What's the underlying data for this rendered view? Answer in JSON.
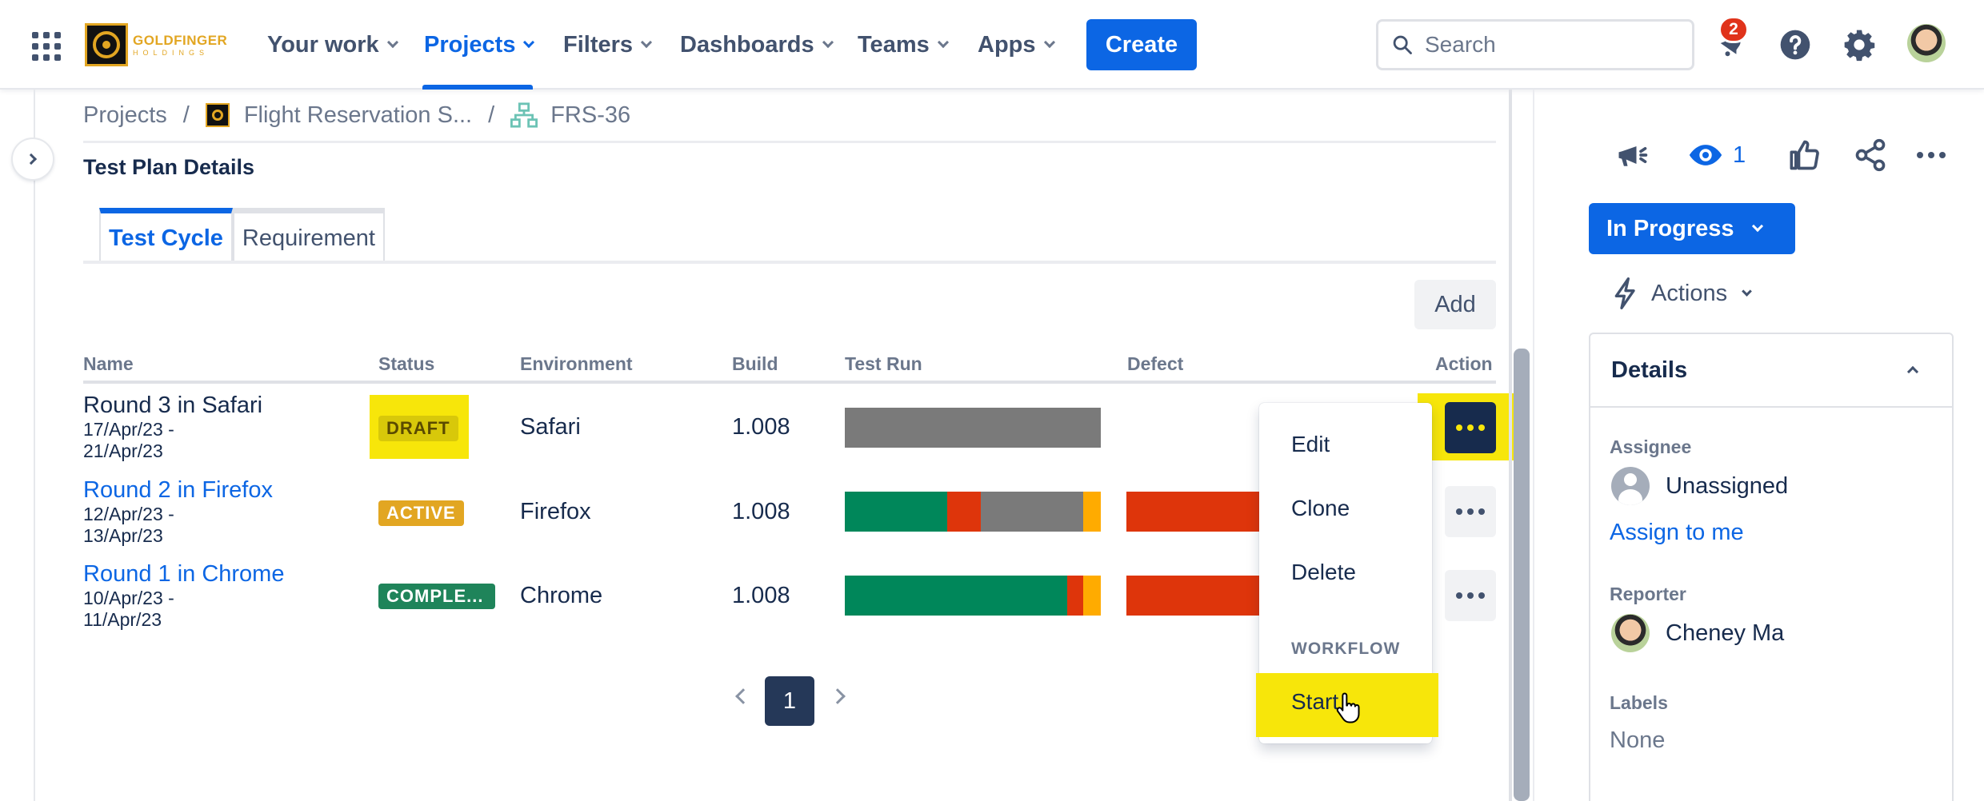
{
  "nav": {
    "items": [
      {
        "label": "Your work"
      },
      {
        "label": "Projects"
      },
      {
        "label": "Filters"
      },
      {
        "label": "Dashboards"
      },
      {
        "label": "Teams"
      },
      {
        "label": "Apps"
      }
    ],
    "create_label": "Create",
    "search_placeholder": "Search",
    "notifications_count": "2",
    "logo_line1": "GOLDFINGER",
    "logo_line2": "HOLDINGS"
  },
  "breadcrumb": {
    "projects": "Projects",
    "project": "Flight Reservation S...",
    "issue": "FRS-36",
    "separator": "/"
  },
  "section_title": "Test Plan Details",
  "tabs": [
    {
      "label": "Test Cycle",
      "active": true
    },
    {
      "label": "Requirement",
      "active": false
    }
  ],
  "add_label": "Add",
  "table": {
    "headers": [
      "Name",
      "Status",
      "Environment",
      "Build",
      "Test Run",
      "Defect",
      "Action"
    ],
    "rows": [
      {
        "name": "Round 3 in Safari",
        "dates": [
          "17/Apr/23 -",
          "21/Apr/23"
        ],
        "status": "DRAFT",
        "environment": "Safari",
        "build": "1.008",
        "test_run": {
          "passed": 0,
          "failed": 0,
          "unexecuted": 1.0,
          "blocked": 0
        },
        "has_defect": false
      },
      {
        "name": "Round 2 in Firefox",
        "dates": [
          "12/Apr/23 -",
          "13/Apr/23"
        ],
        "status": "ACTIVE",
        "environment": "Firefox",
        "build": "1.008",
        "test_run": {
          "passed": 0.4,
          "failed": 0.13,
          "unexecuted": 0.4,
          "blocked": 0.07
        },
        "has_defect": true
      },
      {
        "name": "Round 1 in Chrome",
        "dates": [
          "10/Apr/23 -",
          "11/Apr/23"
        ],
        "status": "COMPLE...",
        "environment": "Chrome",
        "build": "1.008",
        "test_run": {
          "passed": 0.87,
          "failed": 0.06,
          "unexecuted": 0,
          "blocked": 0.07
        },
        "has_defect": true
      }
    ]
  },
  "action_menu": {
    "items": [
      "Edit",
      "Clone",
      "Delete"
    ],
    "workflow_heading": "WORKFLOW",
    "workflow_items": [
      "Start"
    ]
  },
  "pagination": {
    "current": "1"
  },
  "right_panel": {
    "watchers": "1",
    "status": "In Progress",
    "actions_label": "Actions",
    "details_title": "Details",
    "assignee_label": "Assignee",
    "assignee_value": "Unassigned",
    "assign_to_me": "Assign to me",
    "reporter_label": "Reporter",
    "reporter_value": "Cheney Ma",
    "labels_label": "Labels",
    "labels_value": "None"
  },
  "colors": {
    "brand_blue": "#0c66e4",
    "highlight_yellow": "#f7e60a",
    "passed": "#00875a",
    "failed": "#de350b",
    "unexecuted": "#7a7a7a",
    "blocked": "#ffab00",
    "draft_lozenge": "#f7e60a",
    "active_lozenge": "#e2a622",
    "complete_lozenge": "#1f845a"
  }
}
